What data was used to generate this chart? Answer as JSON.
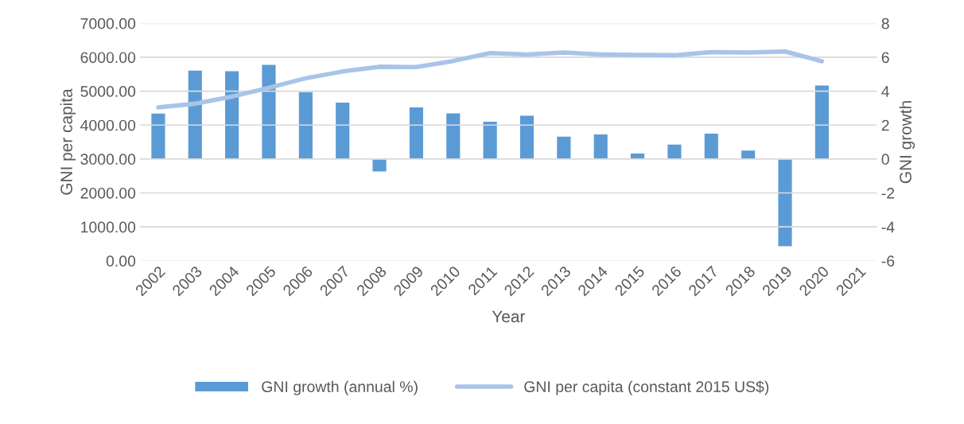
{
  "chart_data": {
    "type": "bar",
    "xlabel": "Year",
    "ylabel": "GNI per capita",
    "y2label": "GNI growth",
    "categories": [
      "2002",
      "2003",
      "2004",
      "2005",
      "2006",
      "2007",
      "2008",
      "2009",
      "2010",
      "2011",
      "2012",
      "2013",
      "2014",
      "2015",
      "2016",
      "2017",
      "2018",
      "2019",
      "2020",
      "2021"
    ],
    "series": [
      {
        "name": "GNI growth (annual %)",
        "axis": "y2",
        "color": "#5b9bd5",
        "values": [
          2.71,
          5.25,
          5.21,
          5.59,
          3.98,
          3.36,
          -0.76,
          3.07,
          2.72,
          2.23,
          2.58,
          1.35,
          1.48,
          0.36,
          0.88,
          1.53,
          0.53,
          -5.17,
          4.37,
          null
        ]
      },
      {
        "name": "GNI per capita (constant 2015 US$)",
        "type": "line",
        "color": "#a9c4e8",
        "values": [
          4520,
          4630,
          4840,
          5100,
          5380,
          5580,
          5720,
          5710,
          5890,
          6120,
          6080,
          6140,
          6080,
          6070,
          6060,
          6150,
          6140,
          6170,
          5880,
          null
        ]
      }
    ],
    "ylim": [
      0,
      7000
    ],
    "yticks": [
      {
        "value": 0,
        "label": "0.00"
      },
      {
        "value": 1000,
        "label": "1000.00"
      },
      {
        "value": 2000,
        "label": "2000.00"
      },
      {
        "value": 3000,
        "label": "3000.00"
      },
      {
        "value": 4000,
        "label": "4000.00"
      },
      {
        "value": 5000,
        "label": "5000.00"
      },
      {
        "value": 6000,
        "label": "6000.00"
      },
      {
        "value": 7000,
        "label": "7000.00"
      }
    ],
    "y2lim": [
      -6,
      8
    ],
    "y2ticks": [
      -6,
      -4,
      -2,
      0,
      2,
      4,
      6,
      8
    ],
    "grid": "y",
    "legend": "bottom",
    "marker": "none",
    "line_style": "solid"
  }
}
